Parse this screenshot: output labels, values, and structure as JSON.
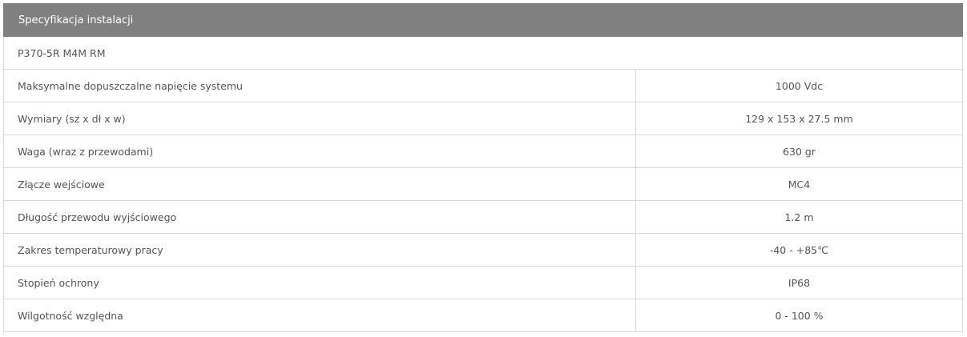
{
  "header": {
    "title": "Specyfikacja instalacji"
  },
  "model": "P370-5R M4M RM",
  "rows": [
    {
      "label": "Maksymalne dopuszczalne napięcie systemu",
      "value": "1000 Vdc"
    },
    {
      "label": "Wymiary (sz x dł x w)",
      "value": "129 x 153 x 27.5 mm"
    },
    {
      "label": "Waga (wraz z przewodami)",
      "value": "630 gr"
    },
    {
      "label": "Złącze wejściowe",
      "value": "MC4"
    },
    {
      "label": "Długość przewodu wyjściowego",
      "value": "1.2 m"
    },
    {
      "label": "Zakres temperaturowy pracy",
      "value": "-40 - +85℃"
    },
    {
      "label": "Stopień ochrony",
      "value": "IP68"
    },
    {
      "label": "Wilgotność względna",
      "value": "0 - 100 %"
    }
  ]
}
